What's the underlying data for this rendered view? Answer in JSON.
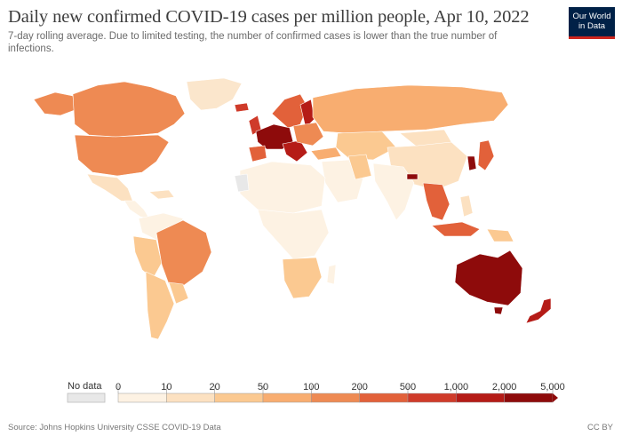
{
  "title": "Daily new confirmed COVID-19 cases per million people, Apr 10, 2022",
  "subtitle": "7-day rolling average. Due to limited testing, the number of confirmed cases is lower than the true number of infections.",
  "logo": {
    "line1": "Our World",
    "line2": "in Data"
  },
  "legend": {
    "nodata_label": "No data",
    "nodata_color": "#e8e8e8",
    "ticks": [
      "0",
      "10",
      "20",
      "50",
      "100",
      "200",
      "500",
      "1,000",
      "2,000",
      "5,000"
    ],
    "colors": [
      "#fdf2e3",
      "#fce1c1",
      "#fbc991",
      "#f8ad70",
      "#ee8a53",
      "#e2613a",
      "#cf3b2a",
      "#b51c17",
      "#8e0b0b"
    ]
  },
  "footer": {
    "source": "Source: Johns Hopkins University CSSE COVID-19 Data",
    "license": "CC BY"
  }
}
